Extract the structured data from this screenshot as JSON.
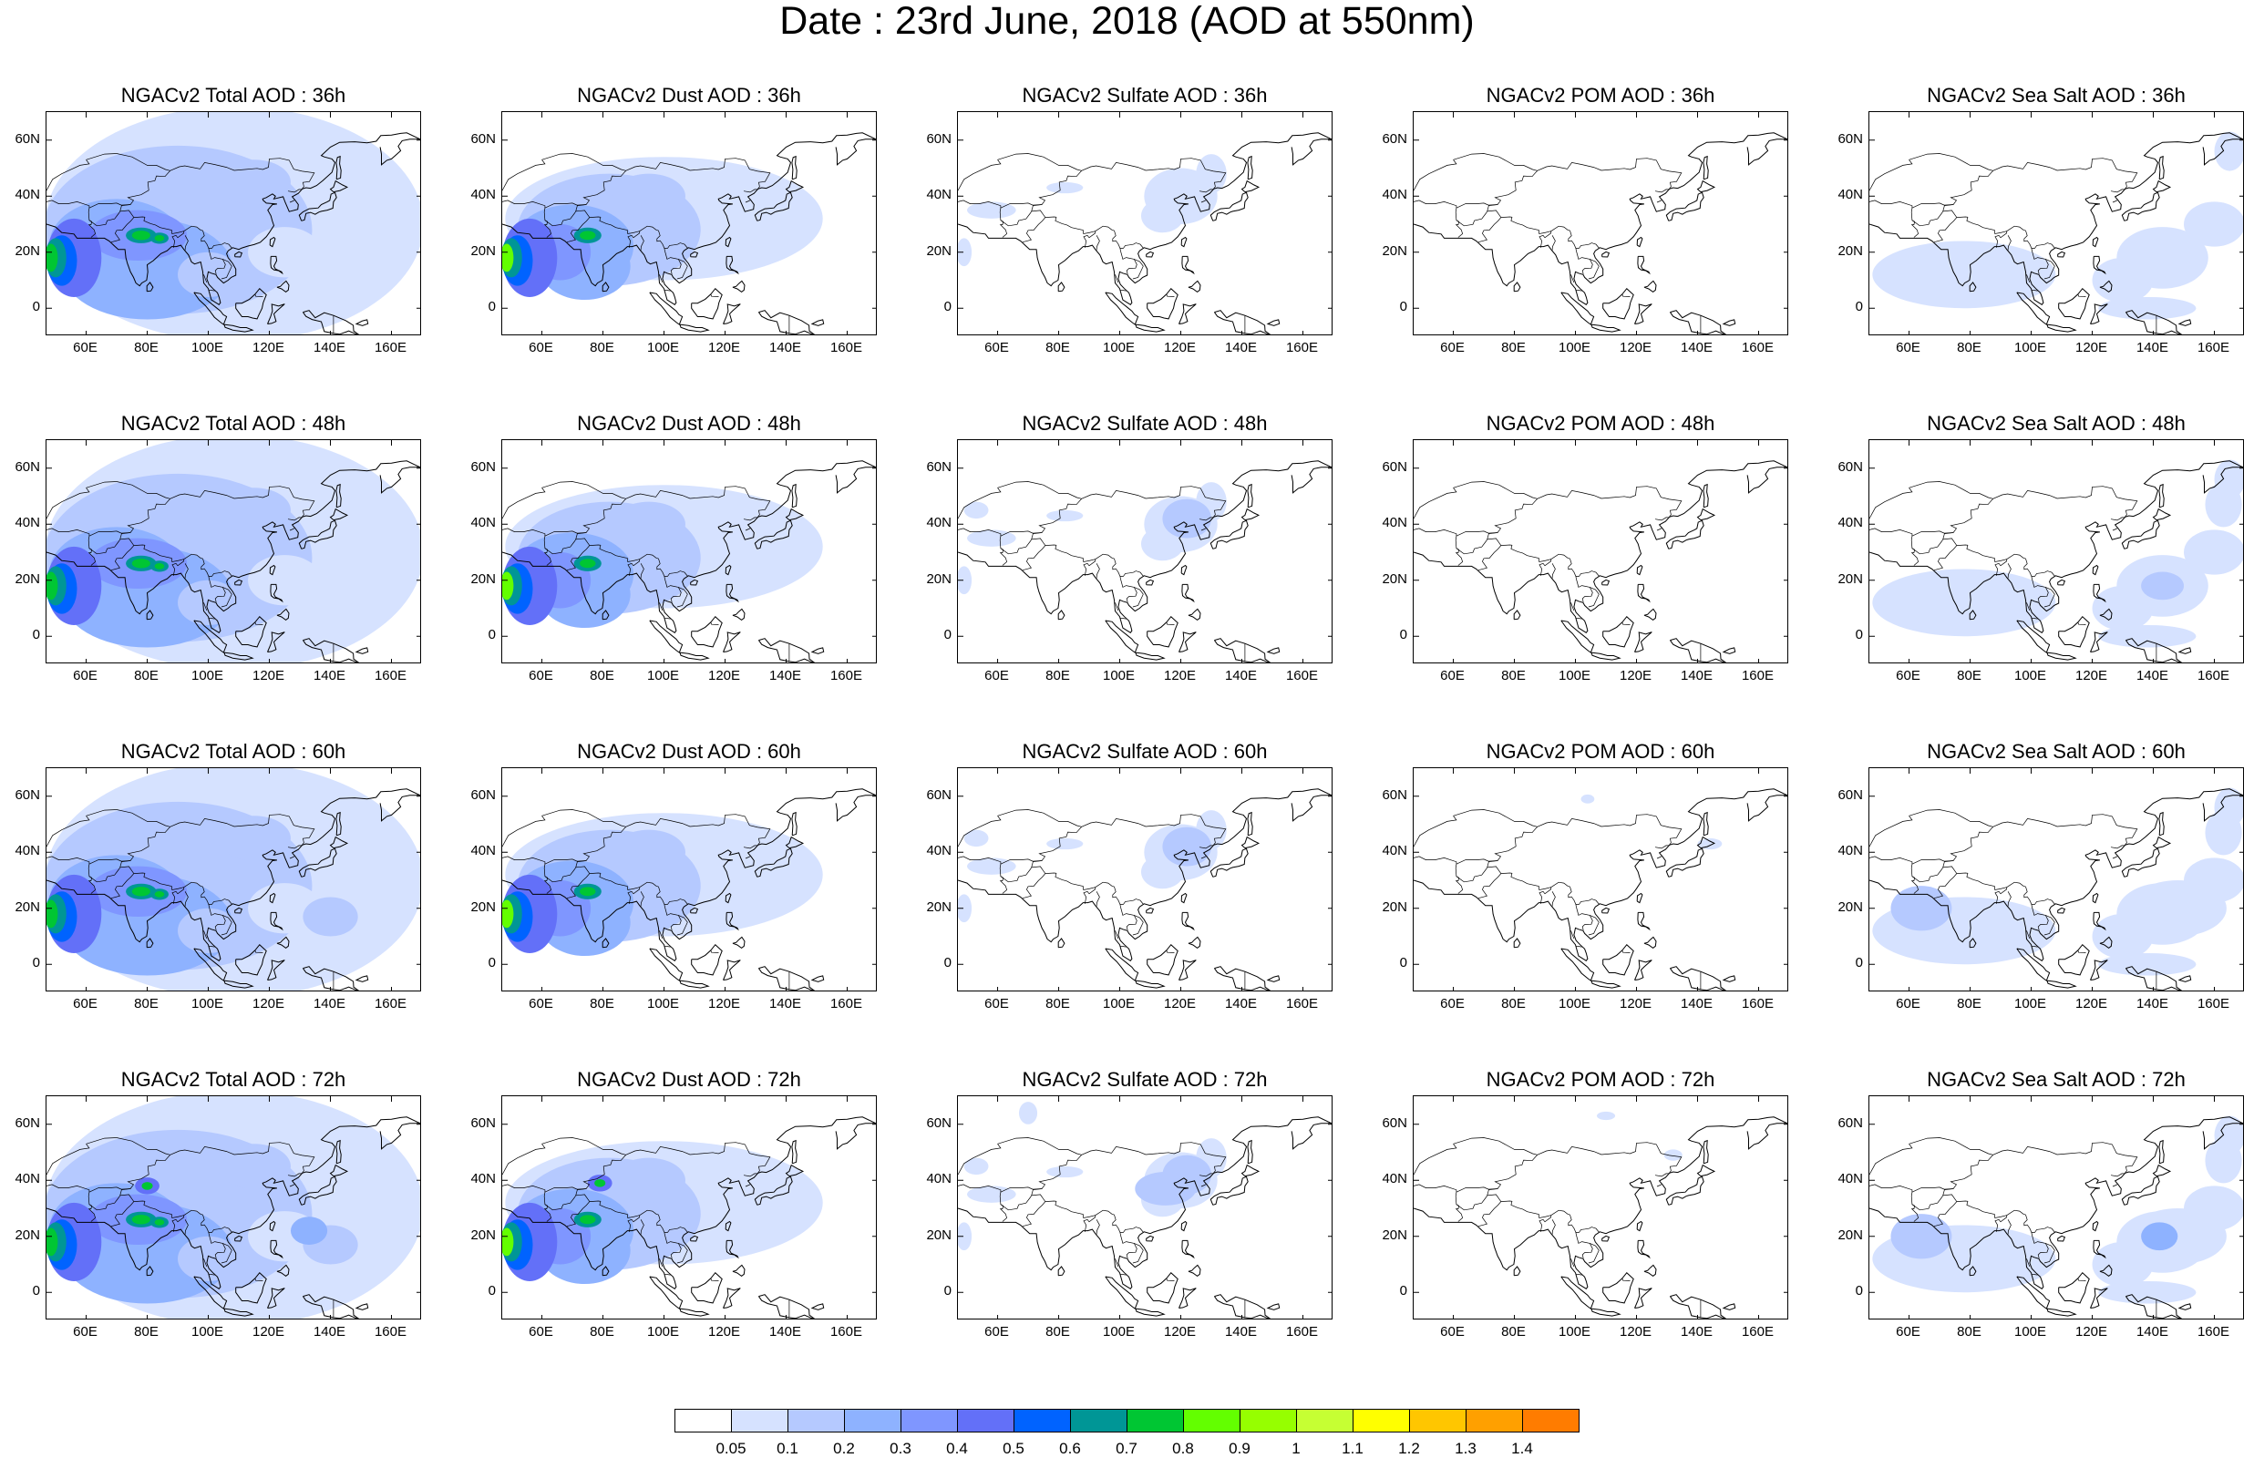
{
  "title": "Date : 23rd June, 2018 (AOD at 550nm)",
  "axes": {
    "x_ticks": [
      "60E",
      "80E",
      "100E",
      "120E",
      "140E",
      "160E"
    ],
    "y_ticks": [
      "60N",
      "40N",
      "20N",
      "0"
    ]
  },
  "panels": [
    {
      "title": "NGACv2 Total AOD : 36h",
      "species": "total",
      "hour": "36h"
    },
    {
      "title": "NGACv2 Dust AOD : 36h",
      "species": "dust",
      "hour": "36h"
    },
    {
      "title": "NGACv2 Sulfate AOD : 36h",
      "species": "sulfate",
      "hour": "36h"
    },
    {
      "title": "NGACv2 POM AOD : 36h",
      "species": "pom",
      "hour": "36h"
    },
    {
      "title": "NGACv2 Sea Salt AOD : 36h",
      "species": "seasalt",
      "hour": "36h"
    },
    {
      "title": "NGACv2 Total AOD : 48h",
      "species": "total",
      "hour": "48h"
    },
    {
      "title": "NGACv2 Dust AOD : 48h",
      "species": "dust",
      "hour": "48h"
    },
    {
      "title": "NGACv2 Sulfate AOD : 48h",
      "species": "sulfate",
      "hour": "48h"
    },
    {
      "title": "NGACv2 POM AOD : 48h",
      "species": "pom",
      "hour": "48h"
    },
    {
      "title": "NGACv2 Sea Salt AOD : 48h",
      "species": "seasalt",
      "hour": "48h"
    },
    {
      "title": "NGACv2 Total AOD : 60h",
      "species": "total",
      "hour": "60h"
    },
    {
      "title": "NGACv2 Dust AOD : 60h",
      "species": "dust",
      "hour": "60h"
    },
    {
      "title": "NGACv2 Sulfate AOD : 60h",
      "species": "sulfate",
      "hour": "60h"
    },
    {
      "title": "NGACv2 POM AOD : 60h",
      "species": "pom",
      "hour": "60h"
    },
    {
      "title": "NGACv2 Sea Salt AOD : 60h",
      "species": "seasalt",
      "hour": "60h"
    },
    {
      "title": "NGACv2 Total AOD : 72h",
      "species": "total",
      "hour": "72h"
    },
    {
      "title": "NGACv2 Dust AOD : 72h",
      "species": "dust",
      "hour": "72h"
    },
    {
      "title": "NGACv2 Sulfate AOD : 72h",
      "species": "sulfate",
      "hour": "72h"
    },
    {
      "title": "NGACv2 POM AOD : 72h",
      "species": "pom",
      "hour": "72h"
    },
    {
      "title": "NGACv2 Sea Salt  AOD : 72h",
      "species": "seasalt",
      "hour": "72h"
    }
  ],
  "colorbar": {
    "labels": [
      "0.05",
      "0.1",
      "0.2",
      "0.3",
      "0.4",
      "0.5",
      "0.6",
      "0.7",
      "0.8",
      "0.9",
      "1",
      "1.1",
      "1.2",
      "1.3",
      "1.4"
    ],
    "colors": [
      "#ffffff",
      "#d6e2ff",
      "#b5c9ff",
      "#8eb2ff",
      "#7f96ff",
      "#6370f8",
      "#0063ff",
      "#009696",
      "#00c633",
      "#63ff00",
      "#96ff00",
      "#c6ff33",
      "#ffff00",
      "#ffc600",
      "#ffa000",
      "#ff7c00",
      "#ff1900"
    ]
  }
}
